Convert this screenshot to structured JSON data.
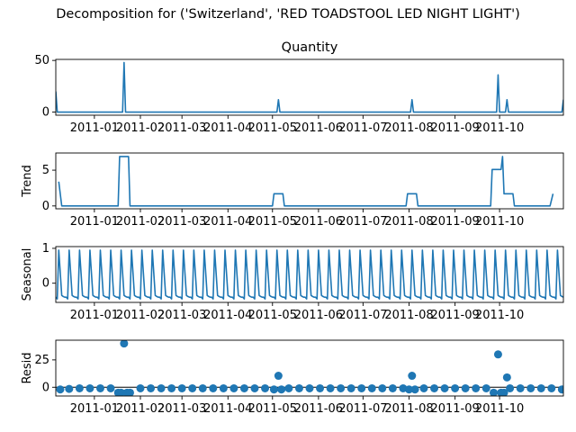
{
  "figure_title": "Decomposition for ('Switzerland', 'RED TOADSTOOL LED NIGHT LIGHT')",
  "colors": {
    "line": "#1f77b4",
    "axis": "#000000",
    "background": "#ffffff"
  },
  "chart_data": [
    {
      "type": "line",
      "title": "Quantity",
      "ylabel": "",
      "x_range": [
        "2010-12-06",
        "2011-11-13"
      ],
      "ylim": [
        -3,
        51
      ],
      "yticks": [
        0,
        50
      ],
      "xticks": [
        "2011-01",
        "2011-02",
        "2011-03",
        "2011-04",
        "2011-05",
        "2011-06",
        "2011-07",
        "2011-08",
        "2011-09",
        "2011-10"
      ],
      "grid": false,
      "series": [
        {
          "points": [
            [
              "2010-12-06",
              20
            ],
            [
              "2010-12-07",
              0
            ],
            [
              "2011-01-20",
              0
            ],
            [
              "2011-01-21",
              48
            ],
            [
              "2011-01-22",
              0
            ],
            [
              "2011-05-04",
              0
            ],
            [
              "2011-05-05",
              12
            ],
            [
              "2011-05-06",
              0
            ],
            [
              "2011-08-02",
              0
            ],
            [
              "2011-08-03",
              12
            ],
            [
              "2011-08-04",
              0
            ],
            [
              "2011-09-29",
              0
            ],
            [
              "2011-09-30",
              36
            ],
            [
              "2011-10-01",
              0
            ],
            [
              "2011-10-05",
              0
            ],
            [
              "2011-10-06",
              12
            ],
            [
              "2011-10-07",
              0
            ],
            [
              "2011-11-12",
              0
            ],
            [
              "2011-11-13",
              12
            ]
          ]
        }
      ]
    },
    {
      "type": "line",
      "title": "",
      "ylabel": "Trend",
      "x_range": [
        "2010-12-06",
        "2011-11-13"
      ],
      "ylim": [
        -0.4,
        7.4
      ],
      "yticks": [
        0,
        5
      ],
      "xticks": [
        "2011-01",
        "2011-02",
        "2011-03",
        "2011-04",
        "2011-05",
        "2011-06",
        "2011-07",
        "2011-08",
        "2011-09",
        "2011-10"
      ],
      "grid": false,
      "series": [
        {
          "points": [
            [
              "2010-12-08",
              3.4
            ],
            [
              "2010-12-10",
              0
            ],
            [
              "2011-01-17",
              0
            ],
            [
              "2011-01-18",
              6.9
            ],
            [
              "2011-01-24",
              6.9
            ],
            [
              "2011-01-25",
              0
            ],
            [
              "2011-05-01",
              0
            ],
            [
              "2011-05-02",
              1.7
            ],
            [
              "2011-05-08",
              1.7
            ],
            [
              "2011-05-09",
              0
            ],
            [
              "2011-07-30",
              0
            ],
            [
              "2011-07-31",
              1.7
            ],
            [
              "2011-08-06",
              1.7
            ],
            [
              "2011-08-07",
              0
            ],
            [
              "2011-09-25",
              0
            ],
            [
              "2011-09-26",
              5.1
            ],
            [
              "2011-10-02",
              5.1
            ],
            [
              "2011-10-03",
              6.9
            ],
            [
              "2011-10-04",
              1.7
            ],
            [
              "2011-10-10",
              1.7
            ],
            [
              "2011-10-11",
              0
            ],
            [
              "2011-11-04",
              0
            ],
            [
              "2011-11-06",
              1.7
            ]
          ]
        }
      ]
    },
    {
      "type": "line",
      "title": "",
      "ylabel": "Seasonal",
      "x_range": [
        "2010-12-06",
        "2011-11-13"
      ],
      "ylim": [
        -0.55,
        1.05
      ],
      "yticks": [
        0,
        1
      ],
      "xticks": [
        "2011-01",
        "2011-02",
        "2011-03",
        "2011-04",
        "2011-05",
        "2011-06",
        "2011-07",
        "2011-08",
        "2011-09",
        "2011-10"
      ],
      "grid": false,
      "period_days": 7,
      "series": [
        {
          "pattern": [
            -0.4,
            -0.45,
            0.95,
            0.3,
            -0.35,
            -0.38,
            -0.4
          ]
        }
      ]
    },
    {
      "type": "scatter",
      "title": "",
      "ylabel": "Resid",
      "x_range": [
        "2010-12-06",
        "2011-11-13"
      ],
      "ylim": [
        -8,
        43
      ],
      "yticks": [
        0,
        25
      ],
      "xticks": [
        "2011-01",
        "2011-02",
        "2011-03",
        "2011-04",
        "2011-05",
        "2011-06",
        "2011-07",
        "2011-08",
        "2011-09",
        "2011-10"
      ],
      "grid": false,
      "baseline": 0,
      "series": [
        {
          "points": [
            [
              "2010-12-09",
              -2
            ],
            [
              "2010-12-15",
              -1.5
            ],
            [
              "2010-12-22",
              -1
            ],
            [
              "2010-12-29",
              -1
            ],
            [
              "2011-01-05",
              -1
            ],
            [
              "2011-01-12",
              -1
            ],
            [
              "2011-01-17",
              -5
            ],
            [
              "2011-01-19",
              -5
            ],
            [
              "2011-01-21",
              40
            ],
            [
              "2011-01-23",
              -5
            ],
            [
              "2011-01-25",
              -5
            ],
            [
              "2011-02-01",
              -1
            ],
            [
              "2011-02-08",
              -1
            ],
            [
              "2011-02-15",
              -1
            ],
            [
              "2011-02-22",
              -1
            ],
            [
              "2011-03-01",
              -1
            ],
            [
              "2011-03-08",
              -1
            ],
            [
              "2011-03-15",
              -1
            ],
            [
              "2011-03-22",
              -1
            ],
            [
              "2011-03-29",
              -1
            ],
            [
              "2011-04-05",
              -1
            ],
            [
              "2011-04-12",
              -1
            ],
            [
              "2011-04-19",
              -1
            ],
            [
              "2011-04-26",
              -1
            ],
            [
              "2011-05-02",
              -2
            ],
            [
              "2011-05-05",
              10.5
            ],
            [
              "2011-05-07",
              -2
            ],
            [
              "2011-05-12",
              -1
            ],
            [
              "2011-05-19",
              -1
            ],
            [
              "2011-05-26",
              -1
            ],
            [
              "2011-06-02",
              -1
            ],
            [
              "2011-06-09",
              -1
            ],
            [
              "2011-06-16",
              -1
            ],
            [
              "2011-06-23",
              -1
            ],
            [
              "2011-06-30",
              -1
            ],
            [
              "2011-07-07",
              -1
            ],
            [
              "2011-07-14",
              -1
            ],
            [
              "2011-07-21",
              -1
            ],
            [
              "2011-07-28",
              -1
            ],
            [
              "2011-08-01",
              -2
            ],
            [
              "2011-08-03",
              10.5
            ],
            [
              "2011-08-05",
              -2
            ],
            [
              "2011-08-11",
              -1
            ],
            [
              "2011-08-18",
              -1
            ],
            [
              "2011-08-25",
              -1
            ],
            [
              "2011-09-01",
              -1
            ],
            [
              "2011-09-08",
              -1
            ],
            [
              "2011-09-15",
              -1
            ],
            [
              "2011-09-22",
              -1
            ],
            [
              "2011-09-27",
              -5
            ],
            [
              "2011-09-30",
              30
            ],
            [
              "2011-10-02",
              -5
            ],
            [
              "2011-10-04",
              -5
            ],
            [
              "2011-10-06",
              9
            ],
            [
              "2011-10-08",
              -1
            ],
            [
              "2011-10-15",
              -1
            ],
            [
              "2011-10-22",
              -1
            ],
            [
              "2011-10-29",
              -1
            ],
            [
              "2011-11-05",
              -1
            ],
            [
              "2011-11-12",
              -2
            ]
          ]
        }
      ]
    }
  ]
}
